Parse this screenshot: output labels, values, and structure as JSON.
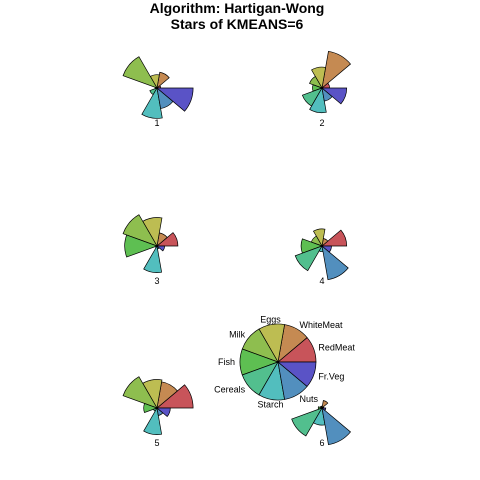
{
  "chart_data": {
    "type": "star",
    "title_line1": "Algorithm: Hartigan-Wong",
    "title_line2": "Stars of KMEANS=6",
    "variables": [
      "RedMeat",
      "WhiteMeat",
      "Eggs",
      "Milk",
      "Fish",
      "Cereals",
      "Starch",
      "Nuts",
      "Fr.Veg"
    ],
    "colors": [
      "#C8545A",
      "#C58A52",
      "#BDBD52",
      "#8EBE4F",
      "#5EBF52",
      "#52BF8E",
      "#52BEBE",
      "#528FBE",
      "#5A53C6"
    ],
    "clusters": [
      {
        "label": "1",
        "values": [
          0.1,
          0.42,
          0.35,
          0.95,
          0.05,
          0.2,
          0.8,
          0.55,
          0.95
        ]
      },
      {
        "label": "2",
        "values": [
          0.2,
          0.98,
          0.55,
          0.35,
          0.25,
          0.55,
          0.65,
          0.35,
          0.65
        ]
      },
      {
        "label": "3",
        "values": [
          0.55,
          0.35,
          0.75,
          0.95,
          0.85,
          0.05,
          0.7,
          0.08,
          0.2
        ]
      },
      {
        "label": "4",
        "values": [
          0.65,
          0.2,
          0.45,
          0.3,
          0.55,
          0.75,
          0.15,
          0.9,
          0.25
        ]
      },
      {
        "label": "5",
        "values": [
          0.95,
          0.7,
          0.75,
          0.95,
          0.35,
          0.1,
          0.7,
          0.2,
          0.35
        ]
      },
      {
        "label": "6",
        "values": [
          0.05,
          0.2,
          0.05,
          0.05,
          0.1,
          0.85,
          0.45,
          0.98,
          0.1
        ]
      }
    ],
    "key_labels": [
      "RedMeat",
      "WhiteMeat",
      "Eggs",
      "Milk",
      "Fish",
      "Cereals",
      "Starch",
      "Nuts",
      "Fr.Veg"
    ]
  }
}
